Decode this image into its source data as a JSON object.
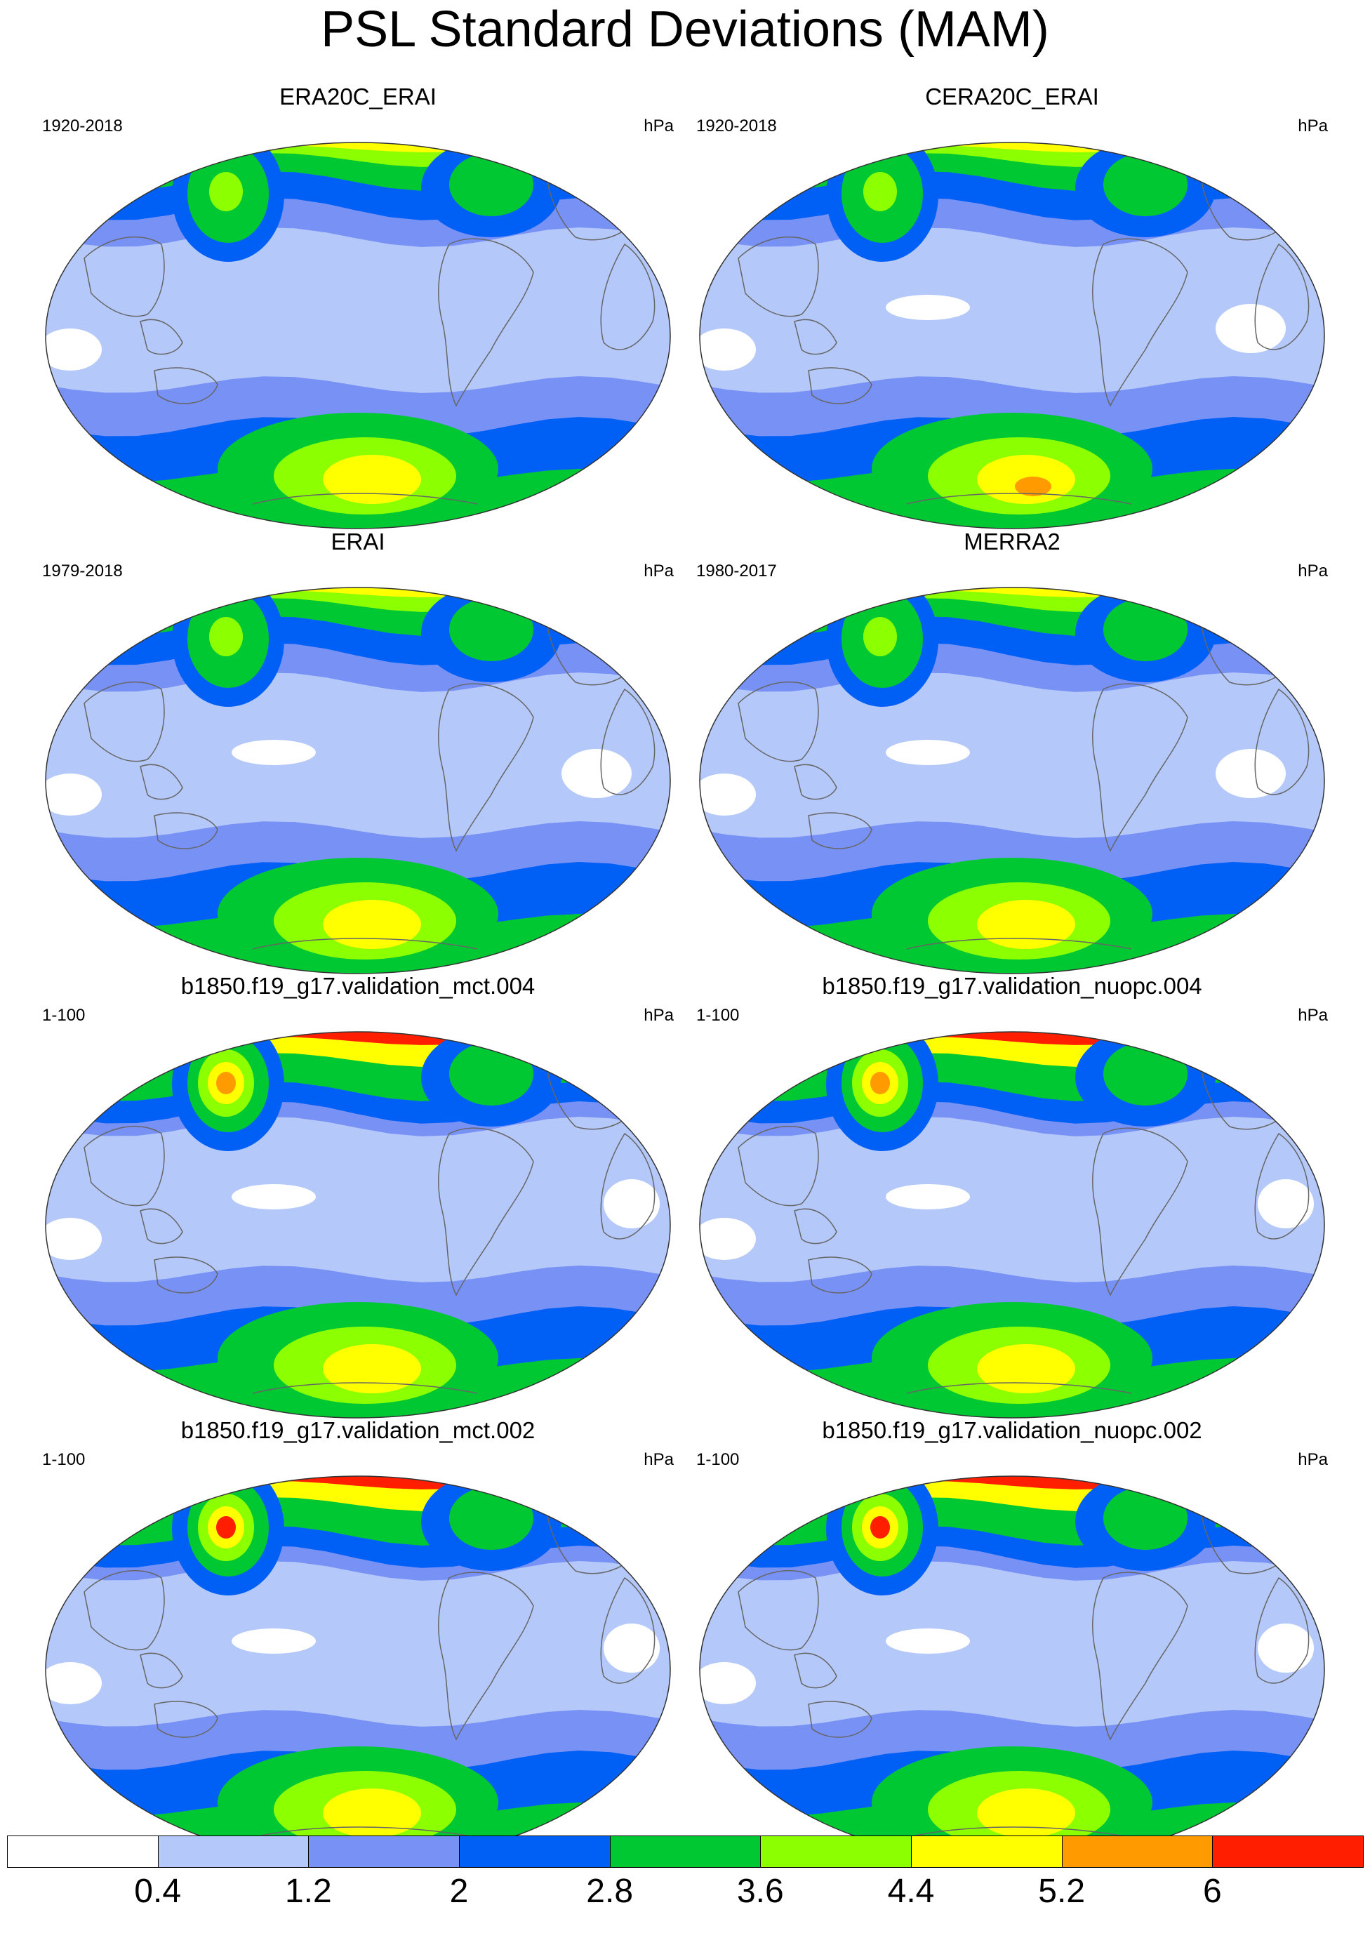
{
  "title": "PSL Standard Deviations (MAM)",
  "panels": [
    {
      "title": "ERA20C_ERAI",
      "period": "1920-2018",
      "units": "hPa",
      "variant": "a"
    },
    {
      "title": "CERA20C_ERAI",
      "period": "1920-2018",
      "units": "hPa",
      "variant": "a"
    },
    {
      "title": "ERAI",
      "period": "1979-2018",
      "units": "hPa",
      "variant": "b"
    },
    {
      "title": "MERRA2",
      "period": "1980-2017",
      "units": "hPa",
      "variant": "b"
    },
    {
      "title": "b1850.f19_g17.validation_mct.004",
      "period": "1-100",
      "units": "hPa",
      "variant": "c"
    },
    {
      "title": "b1850.f19_g17.validation_nuopc.004",
      "period": "1-100",
      "units": "hPa",
      "variant": "c"
    },
    {
      "title": "b1850.f19_g17.validation_mct.002",
      "period": "1-100",
      "units": "hPa",
      "variant": "d"
    },
    {
      "title": "b1850.f19_g17.validation_nuopc.002",
      "period": "1-100",
      "units": "hPa",
      "variant": "d"
    }
  ],
  "colorbar": {
    "colors": [
      "#ffffff",
      "#b4c8fa",
      "#7891f5",
      "#005ff5",
      "#00c832",
      "#8cff00",
      "#ffff00",
      "#ff9b00",
      "#ff1e00"
    ],
    "labels": [
      "0.4",
      "1.2",
      "2",
      "2.8",
      "3.6",
      "4.4",
      "5.2",
      "6"
    ]
  }
}
